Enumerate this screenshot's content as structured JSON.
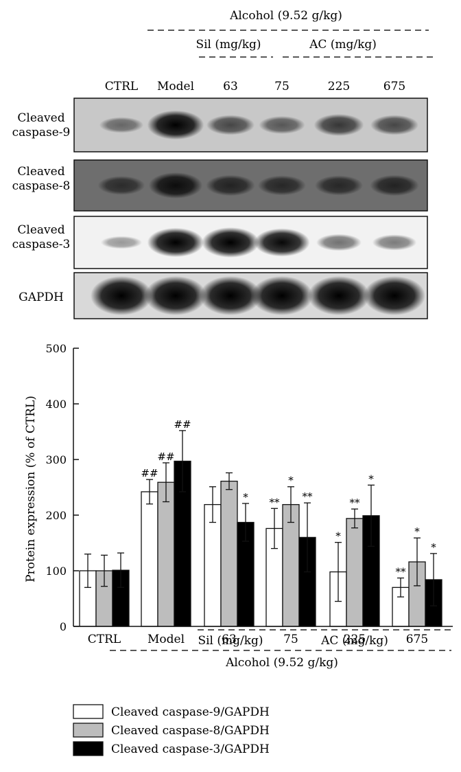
{
  "blot": {
    "top_group_label": "Alcohol (9.52 g/kg)",
    "sil_label": "Sil (mg/kg)",
    "ac_label": "AC (mg/kg)",
    "lanes": [
      "CTRL",
      "Model",
      "63",
      "75",
      "225",
      "675"
    ],
    "rows": [
      {
        "label_lines": [
          "Cleaved",
          "caspase-9"
        ],
        "background": "#c8c8c8",
        "intensities": [
          0.3,
          0.95,
          0.5,
          0.4,
          0.6,
          0.5
        ]
      },
      {
        "label_lines": [
          "Cleaved",
          "caspase-8"
        ],
        "background": "#6e6e6e",
        "intensities": [
          0.45,
          0.8,
          0.55,
          0.5,
          0.5,
          0.55
        ]
      },
      {
        "label_lines": [
          "Cleaved",
          "caspase-3"
        ],
        "background": "#f2f2f2",
        "intensities": [
          0.15,
          0.95,
          1.0,
          0.9,
          0.35,
          0.3
        ]
      },
      {
        "label_lines": [
          "GAPDH"
        ],
        "background": "#d9d9d9",
        "intensities": [
          1.0,
          1.0,
          1.0,
          1.0,
          1.0,
          1.0
        ]
      }
    ]
  },
  "chart_data": {
    "type": "bar",
    "ylabel": "Protein expression (% of CTRL)",
    "ylim": [
      0,
      500
    ],
    "yticks": [
      0,
      100,
      200,
      300,
      400,
      500
    ],
    "categories": [
      "CTRL",
      "Model",
      "63",
      "75",
      "225",
      "675"
    ],
    "group_label_alcohol": "Alcohol (9.52 g/kg)",
    "group_label_sil": "Sil (mg/kg)",
    "group_label_ac": "AC (mg/kg)",
    "series": [
      {
        "name": "Cleaved caspase-9/GAPDH",
        "color": "#ffffff",
        "values": [
          100,
          242,
          219,
          176,
          98,
          70
        ],
        "errors": [
          30,
          22,
          32,
          36,
          53,
          17
        ],
        "annotations": [
          "",
          "##",
          "",
          "**",
          "*",
          "**"
        ]
      },
      {
        "name": "Cleaved caspase-8/GAPDH",
        "color": "#bdbdbd",
        "values": [
          100,
          259,
          261,
          219,
          194,
          116
        ],
        "errors": [
          28,
          35,
          15,
          32,
          17,
          43
        ],
        "annotations": [
          "",
          "##",
          "",
          "*",
          "**",
          "*"
        ]
      },
      {
        "name": "Cleaved caspase-3/GAPDH",
        "color": "#000000",
        "values": [
          101,
          297,
          187,
          160,
          199,
          84
        ],
        "errors": [
          31,
          55,
          34,
          62,
          55,
          47
        ],
        "annotations": [
          "",
          "##",
          "*",
          "**",
          "*",
          "*"
        ]
      }
    ]
  }
}
